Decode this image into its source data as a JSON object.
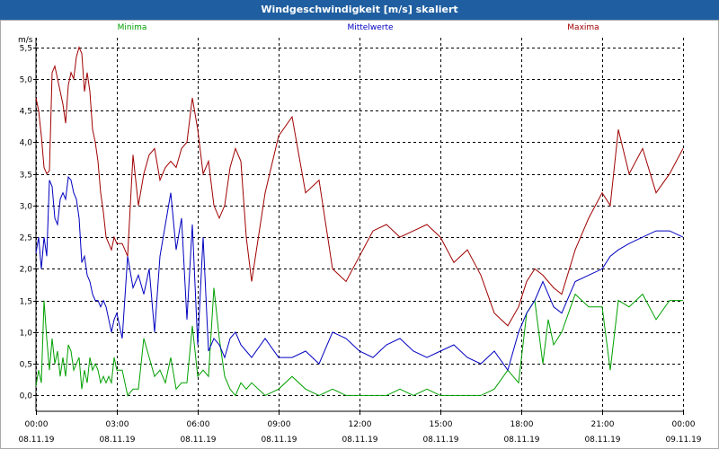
{
  "chart_data": {
    "type": "line",
    "title": "Windgeschwindigkeit [m/s] skaliert",
    "ylabel": "m/s",
    "xlabel": "",
    "ylim": [
      -0.25,
      5.65
    ],
    "x_ticks": [
      {
        "time": "00:00",
        "date": "08.11.19"
      },
      {
        "time": "03:00",
        "date": "08.11.19"
      },
      {
        "time": "06:00",
        "date": "08.11.19"
      },
      {
        "time": "09:00",
        "date": "08.11.19"
      },
      {
        "time": "12:00",
        "date": "08.11.19"
      },
      {
        "time": "15:00",
        "date": "08.11.19"
      },
      {
        "time": "18:00",
        "date": "08.11.19"
      },
      {
        "time": "21:00",
        "date": "08.11.19"
      },
      {
        "time": "00:00",
        "date": "09.11.19"
      }
    ],
    "y_ticks": [
      "0,0",
      "0,5",
      "1,0",
      "1,5",
      "2,0",
      "2,5",
      "3,0",
      "3,5",
      "4,0",
      "4,5",
      "5,0",
      "5,5"
    ],
    "grid": true,
    "series": [
      {
        "name": "Minima",
        "color": "#00a000",
        "x": [
          0.0,
          0.1,
          0.2,
          0.3,
          0.4,
          0.5,
          0.6,
          0.7,
          0.8,
          0.9,
          1.0,
          1.1,
          1.2,
          1.3,
          1.4,
          1.5,
          1.6,
          1.7,
          1.8,
          1.9,
          2.0,
          2.1,
          2.2,
          2.3,
          2.4,
          2.5,
          2.6,
          2.7,
          2.8,
          2.9,
          3.0,
          3.2,
          3.4,
          3.6,
          3.8,
          4.0,
          4.2,
          4.4,
          4.6,
          4.8,
          5.0,
          5.2,
          5.4,
          5.6,
          5.8,
          6.0,
          6.2,
          6.4,
          6.6,
          6.8,
          7.0,
          7.2,
          7.4,
          7.6,
          7.8,
          8.0,
          8.5,
          9.0,
          9.5,
          10.0,
          10.5,
          11.0,
          11.5,
          12.0,
          12.5,
          13.0,
          13.5,
          14.0,
          14.5,
          15.0,
          15.5,
          16.0,
          16.5,
          17.0,
          17.5,
          17.9,
          18.2,
          18.5,
          18.8,
          19.0,
          19.2,
          19.5,
          20.0,
          20.5,
          21.0,
          21.3,
          21.6,
          22.0,
          22.5,
          23.0,
          23.5,
          24.0
        ],
        "y": [
          0.15,
          0.4,
          0.2,
          1.5,
          0.9,
          0.4,
          0.9,
          0.5,
          0.7,
          0.3,
          0.6,
          0.3,
          0.8,
          0.7,
          0.4,
          0.5,
          0.6,
          0.1,
          0.4,
          0.2,
          0.6,
          0.4,
          0.5,
          0.4,
          0.2,
          0.3,
          0.2,
          0.3,
          0.2,
          0.6,
          0.4,
          0.4,
          0.0,
          0.1,
          0.1,
          0.9,
          0.6,
          0.3,
          0.4,
          0.2,
          0.6,
          0.1,
          0.2,
          0.2,
          1.1,
          0.3,
          0.4,
          0.3,
          1.7,
          0.9,
          0.3,
          0.1,
          0.0,
          0.2,
          0.1,
          0.2,
          0.0,
          0.1,
          0.3,
          0.1,
          0.0,
          0.1,
          0.0,
          0.0,
          0.0,
          0.0,
          0.1,
          0.0,
          0.1,
          0.0,
          0.0,
          0.0,
          0.0,
          0.1,
          0.4,
          0.2,
          1.3,
          1.5,
          0.5,
          1.2,
          0.8,
          1.0,
          1.6,
          1.4,
          1.4,
          0.4,
          1.5,
          1.4,
          1.6,
          1.2,
          1.5,
          1.5
        ]
      },
      {
        "name": "Mittelwerte",
        "color": "#0000c0",
        "x": [
          0.0,
          0.1,
          0.2,
          0.3,
          0.4,
          0.5,
          0.6,
          0.7,
          0.8,
          0.9,
          1.0,
          1.1,
          1.2,
          1.3,
          1.4,
          1.5,
          1.6,
          1.7,
          1.8,
          1.9,
          2.0,
          2.1,
          2.2,
          2.3,
          2.4,
          2.5,
          2.6,
          2.7,
          2.8,
          2.9,
          3.0,
          3.2,
          3.4,
          3.6,
          3.8,
          4.0,
          4.2,
          4.4,
          4.6,
          4.8,
          5.0,
          5.2,
          5.4,
          5.6,
          5.8,
          6.0,
          6.2,
          6.4,
          6.6,
          6.8,
          7.0,
          7.2,
          7.4,
          7.6,
          7.8,
          8.0,
          8.5,
          9.0,
          9.5,
          10.0,
          10.5,
          11.0,
          11.5,
          12.0,
          12.5,
          13.0,
          13.5,
          14.0,
          14.5,
          15.0,
          15.5,
          16.0,
          16.5,
          17.0,
          17.5,
          17.9,
          18.2,
          18.5,
          18.8,
          19.0,
          19.2,
          19.5,
          20.0,
          20.5,
          21.0,
          21.3,
          21.6,
          22.0,
          22.5,
          23.0,
          23.5,
          24.0
        ],
        "y": [
          2.25,
          2.5,
          2.0,
          2.5,
          2.2,
          3.4,
          3.3,
          2.8,
          2.7,
          3.1,
          3.2,
          3.1,
          3.45,
          3.4,
          3.2,
          3.1,
          2.8,
          2.1,
          2.2,
          1.9,
          1.8,
          1.6,
          1.5,
          1.5,
          1.4,
          1.5,
          1.4,
          1.2,
          1.0,
          1.2,
          1.3,
          0.9,
          2.2,
          1.7,
          1.9,
          1.6,
          2.0,
          1.0,
          2.2,
          2.7,
          3.2,
          2.3,
          2.8,
          1.2,
          2.7,
          0.8,
          2.5,
          0.7,
          0.9,
          0.8,
          0.6,
          0.9,
          1.0,
          0.8,
          0.7,
          0.6,
          0.9,
          0.6,
          0.6,
          0.7,
          0.5,
          1.0,
          0.9,
          0.7,
          0.6,
          0.8,
          0.9,
          0.7,
          0.6,
          0.7,
          0.8,
          0.6,
          0.5,
          0.7,
          0.4,
          1.0,
          1.3,
          1.5,
          1.8,
          1.6,
          1.4,
          1.3,
          1.8,
          1.9,
          2.0,
          2.2,
          2.3,
          2.4,
          2.5,
          2.6,
          2.6,
          2.5
        ]
      },
      {
        "name": "Maxima",
        "color": "#a00000",
        "x": [
          0.0,
          0.1,
          0.2,
          0.3,
          0.4,
          0.5,
          0.6,
          0.7,
          0.8,
          0.9,
          1.0,
          1.1,
          1.2,
          1.3,
          1.4,
          1.5,
          1.6,
          1.7,
          1.8,
          1.9,
          2.0,
          2.1,
          2.2,
          2.3,
          2.4,
          2.5,
          2.6,
          2.7,
          2.8,
          2.9,
          3.0,
          3.2,
          3.4,
          3.6,
          3.8,
          4.0,
          4.2,
          4.4,
          4.6,
          4.8,
          5.0,
          5.2,
          5.4,
          5.6,
          5.8,
          6.0,
          6.2,
          6.4,
          6.6,
          6.8,
          7.0,
          7.2,
          7.4,
          7.6,
          7.8,
          8.0,
          8.5,
          9.0,
          9.5,
          10.0,
          10.5,
          11.0,
          11.5,
          12.0,
          12.5,
          13.0,
          13.5,
          14.0,
          14.5,
          15.0,
          15.5,
          16.0,
          16.5,
          17.0,
          17.5,
          17.9,
          18.2,
          18.5,
          18.8,
          19.0,
          19.2,
          19.5,
          20.0,
          20.5,
          21.0,
          21.3,
          21.6,
          22.0,
          22.5,
          23.0,
          23.5,
          24.0
        ],
        "y": [
          4.7,
          4.5,
          4.1,
          3.6,
          3.5,
          3.55,
          5.1,
          5.2,
          5.0,
          4.8,
          4.6,
          4.3,
          4.9,
          5.1,
          5.0,
          5.35,
          5.5,
          5.4,
          4.8,
          5.1,
          4.8,
          4.2,
          4.0,
          3.7,
          3.2,
          2.9,
          2.5,
          2.4,
          2.3,
          2.5,
          2.4,
          2.4,
          2.2,
          3.8,
          3.0,
          3.5,
          3.8,
          3.9,
          3.4,
          3.6,
          3.7,
          3.6,
          3.9,
          4.0,
          4.7,
          4.2,
          3.5,
          3.7,
          3.0,
          2.8,
          3.0,
          3.6,
          3.9,
          3.7,
          2.5,
          1.8,
          3.2,
          4.1,
          4.4,
          3.2,
          3.4,
          2.0,
          1.8,
          2.2,
          2.6,
          2.7,
          2.5,
          2.6,
          2.7,
          2.5,
          2.1,
          2.3,
          1.9,
          1.3,
          1.1,
          1.4,
          1.8,
          2.0,
          1.9,
          1.8,
          1.7,
          1.6,
          2.3,
          2.8,
          3.2,
          3.0,
          4.2,
          3.5,
          3.9,
          3.2,
          3.5,
          3.9
        ]
      }
    ]
  }
}
